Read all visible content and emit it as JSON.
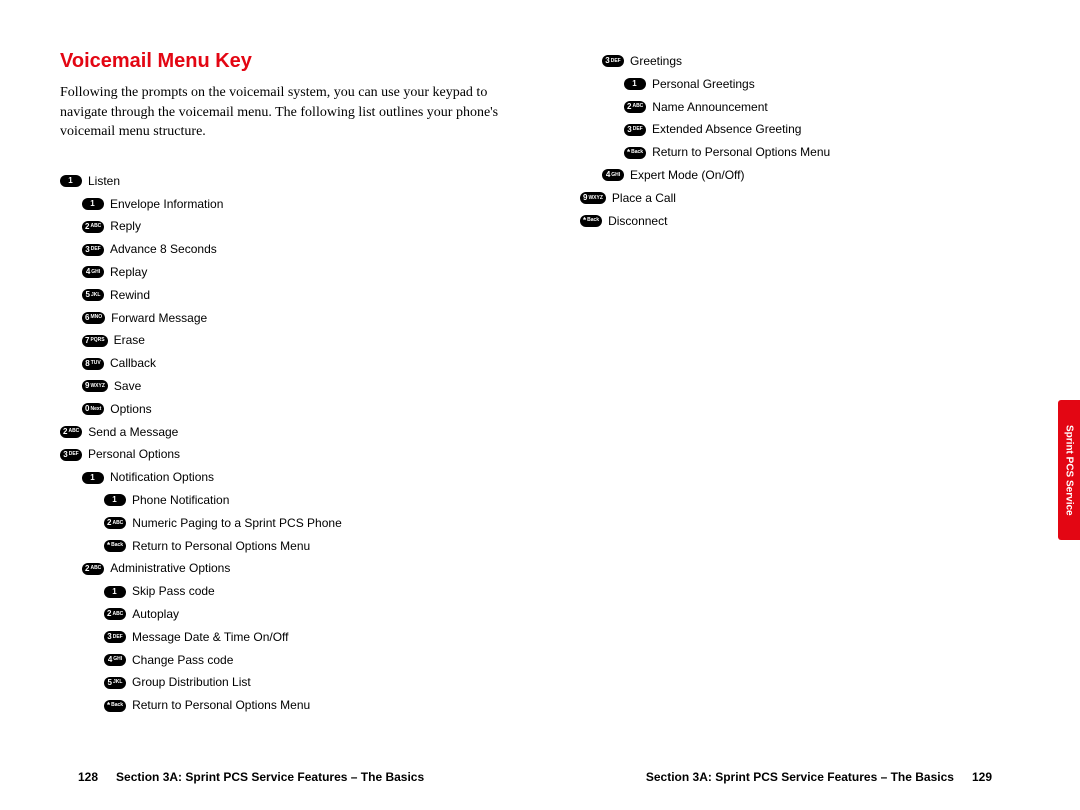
{
  "colors": {
    "accent_red": "#e30613",
    "black": "#000000",
    "white": "#ffffff"
  },
  "heading": "Voicemail Menu Key",
  "intro": "Following the prompts on the voicemail system, you can use your keypad to navigate through the voicemail menu. The following list outlines your phone's voicemail menu structure.",
  "left_menu": [
    {
      "indent": 0,
      "key": "1",
      "sub": "",
      "label": "Listen"
    },
    {
      "indent": 1,
      "key": "1",
      "sub": "",
      "label": "Envelope Information"
    },
    {
      "indent": 1,
      "key": "2",
      "sub": "ABC",
      "label": "Reply"
    },
    {
      "indent": 1,
      "key": "3",
      "sub": "DEF",
      "label": "Advance 8 Seconds"
    },
    {
      "indent": 1,
      "key": "4",
      "sub": "GHI",
      "label": "Replay"
    },
    {
      "indent": 1,
      "key": "5",
      "sub": "JKL",
      "label": "Rewind"
    },
    {
      "indent": 1,
      "key": "6",
      "sub": "MNO",
      "label": "Forward Message"
    },
    {
      "indent": 1,
      "key": "7",
      "sub": "PQRS",
      "label": "Erase"
    },
    {
      "indent": 1,
      "key": "8",
      "sub": "TUV",
      "label": "Callback"
    },
    {
      "indent": 1,
      "key": "9",
      "sub": "WXYZ",
      "label": "Save"
    },
    {
      "indent": 1,
      "key": "0",
      "sub": "Next",
      "label": "Options"
    },
    {
      "indent": 0,
      "key": "2",
      "sub": "ABC",
      "label": "Send a Message"
    },
    {
      "indent": 0,
      "key": "3",
      "sub": "DEF",
      "label": "Personal Options"
    },
    {
      "indent": 1,
      "key": "1",
      "sub": "",
      "label": "Notification Options"
    },
    {
      "indent": 2,
      "key": "1",
      "sub": "",
      "label": "Phone Notification"
    },
    {
      "indent": 2,
      "key": "2",
      "sub": "ABC",
      "label": "Numeric Paging to a Sprint PCS Phone"
    },
    {
      "indent": 2,
      "key": "*",
      "sub": "Back",
      "label": "Return to Personal Options Menu"
    },
    {
      "indent": 1,
      "key": "2",
      "sub": "ABC",
      "label": "Administrative Options"
    },
    {
      "indent": 2,
      "key": "1",
      "sub": "",
      "label": "Skip Pass code"
    },
    {
      "indent": 2,
      "key": "2",
      "sub": "ABC",
      "label": "Autoplay"
    },
    {
      "indent": 2,
      "key": "3",
      "sub": "DEF",
      "label": "Message Date & Time On/Off"
    },
    {
      "indent": 2,
      "key": "4",
      "sub": "GHI",
      "label": "Change Pass code"
    },
    {
      "indent": 2,
      "key": "5",
      "sub": "JKL",
      "label": "Group Distribution List"
    },
    {
      "indent": 2,
      "key": "*",
      "sub": "Back",
      "label": "Return to Personal Options Menu"
    }
  ],
  "right_menu": [
    {
      "indent": 1,
      "key": "3",
      "sub": "DEF",
      "label": "Greetings"
    },
    {
      "indent": 2,
      "key": "1",
      "sub": "",
      "label": "Personal Greetings"
    },
    {
      "indent": 2,
      "key": "2",
      "sub": "ABC",
      "label": "Name Announcement"
    },
    {
      "indent": 2,
      "key": "3",
      "sub": "DEF",
      "label": "Extended Absence Greeting"
    },
    {
      "indent": 2,
      "key": "*",
      "sub": "Back",
      "label": "Return to Personal Options Menu"
    },
    {
      "indent": 1,
      "key": "4",
      "sub": "GHI",
      "label": "Expert Mode (On/Off)"
    },
    {
      "indent": 0,
      "key": "9",
      "sub": "WXYZ",
      "label": "Place a Call"
    },
    {
      "indent": 0,
      "key": "*",
      "sub": "Back",
      "label": "Disconnect"
    }
  ],
  "footer": {
    "left_page_num": "128",
    "right_page_num": "129",
    "section_text": "Section 3A: Sprint PCS Service Features – The Basics"
  },
  "side_tab": "Sprint PCS Service"
}
